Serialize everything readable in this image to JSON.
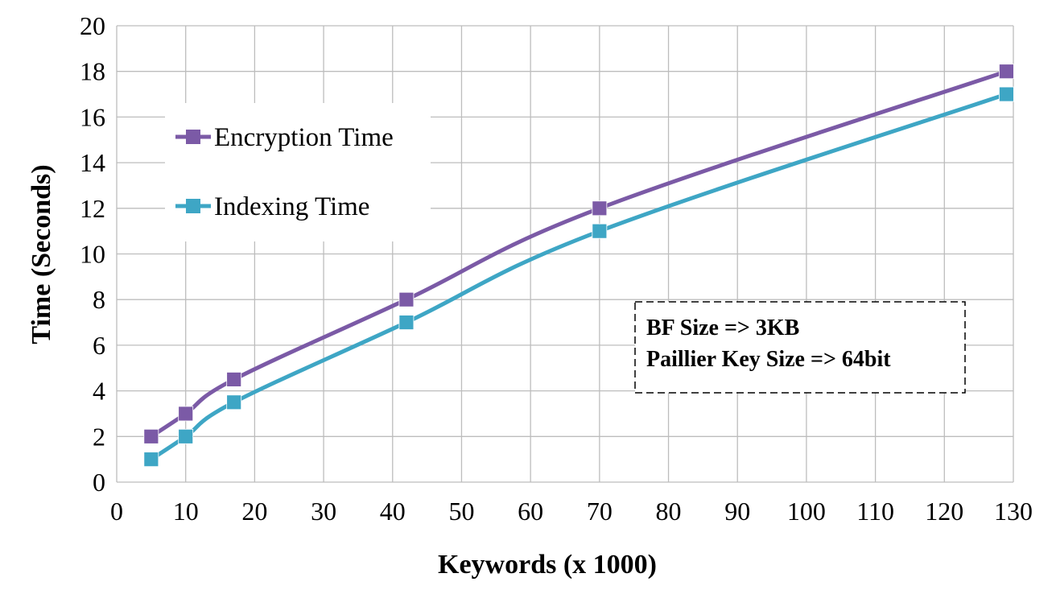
{
  "chart_data": {
    "type": "line",
    "title": "",
    "xlabel": "Keywords (x 1000)",
    "ylabel": "Time (Seconds)",
    "xlim": [
      0,
      130
    ],
    "ylim": [
      0,
      20
    ],
    "x_ticks": [
      0,
      10,
      20,
      30,
      40,
      50,
      60,
      70,
      80,
      90,
      100,
      110,
      120,
      130
    ],
    "y_ticks": [
      0,
      2,
      4,
      6,
      8,
      10,
      12,
      14,
      16,
      18,
      20
    ],
    "grid": true,
    "legend_position": "upper-left",
    "series": [
      {
        "name": "Encryption Time",
        "color": "#7b5aa6",
        "marker": "square",
        "x": [
          5,
          10,
          17,
          42,
          70,
          129
        ],
        "y": [
          2,
          3,
          4.5,
          8,
          12,
          18
        ]
      },
      {
        "name": "Indexing Time",
        "color": "#3ea6c5",
        "marker": "square",
        "x": [
          5,
          10,
          17,
          42,
          70,
          129
        ],
        "y": [
          1,
          2,
          3.5,
          7,
          11,
          17
        ]
      }
    ],
    "annotation": {
      "lines": [
        "BF Size => 3KB",
        "Paillier Key Size => 64bit"
      ],
      "border": "dashed"
    }
  }
}
